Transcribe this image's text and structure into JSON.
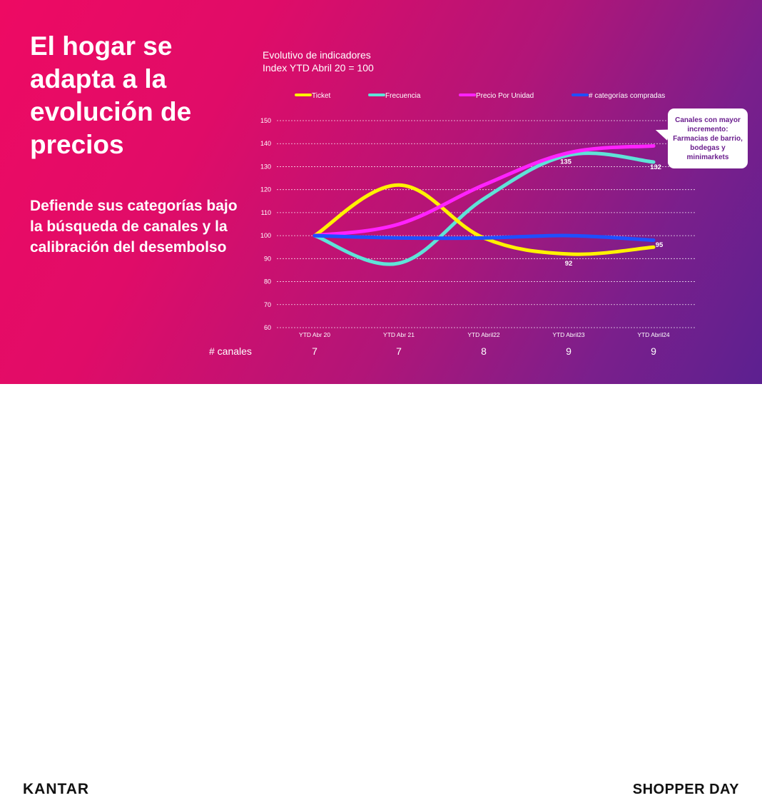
{
  "slide": {
    "title": "El hogar se adapta a la evolución de precios",
    "subtitle": "Defiende sus categorías bajo la búsqueda de canales y la calibración del desembolso"
  },
  "chart_header": {
    "line1": "Evolutivo de indicadores",
    "line2": "Index YTD Abril 20 = 100"
  },
  "callout": "Canales con mayor incremento: Farmacias de barrio, bodegas y minimarkets",
  "chart_data": {
    "type": "line",
    "categories": [
      "YTD Abr 20",
      "YTD Abr 21",
      "YTD Abril22",
      "YTD Abril23",
      "YTD Abril24"
    ],
    "ylim": [
      60,
      150
    ],
    "yticks": [
      60,
      70,
      80,
      90,
      100,
      110,
      120,
      130,
      140,
      150
    ],
    "grid": true,
    "legend_position": "top",
    "series": [
      {
        "name": "Ticket",
        "color": "#fff200",
        "values": [
          100,
          122,
          99,
          92,
          95
        ]
      },
      {
        "name": "Frecuencia",
        "color": "#5fe3d8",
        "values": [
          100,
          88,
          116,
          135,
          132
        ]
      },
      {
        "name": "Precio Por Unidad",
        "color": "#ff22ff",
        "values": [
          100,
          105,
          122,
          136,
          139
        ]
      },
      {
        "name": "# categorías compradas",
        "color": "#1f4fff",
        "values": [
          100,
          99,
          99,
          100,
          98
        ]
      }
    ],
    "data_labels": [
      {
        "series": 0,
        "index": 3,
        "text": "92"
      },
      {
        "series": 0,
        "index": 4,
        "text": "95"
      },
      {
        "series": 1,
        "index": 3,
        "text": "135"
      },
      {
        "series": 1,
        "index": 4,
        "text": "132"
      }
    ],
    "channels": {
      "label": "# canales",
      "values": [
        "7",
        "7",
        "8",
        "9",
        "9"
      ]
    }
  },
  "footer": {
    "left_logo": "KANTAR",
    "right_logo": "SHOPPER DAY"
  }
}
